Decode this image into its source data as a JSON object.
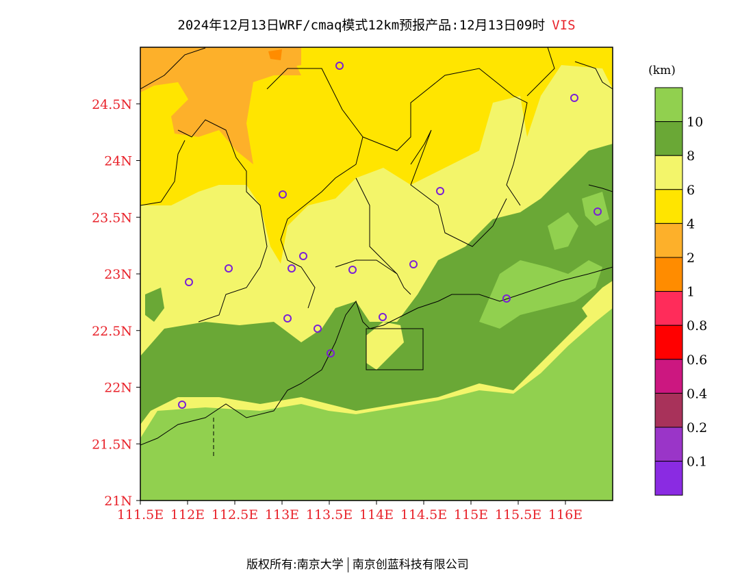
{
  "title": {
    "main": "2024年12月13日WRF/cmaq模式12km预报产品:12月13日09时",
    "variable": "VIS"
  },
  "map": {
    "lat_labels": [
      "21N",
      "21.5N",
      "22N",
      "22.5N",
      "23N",
      "23.5N",
      "24N",
      "24.5N"
    ],
    "lon_labels": [
      "111.5E",
      "112E",
      "112.5E",
      "113E",
      "113.5E",
      "114E",
      "114.5E",
      "115E",
      "115.5E",
      "116E"
    ],
    "extent": {
      "lon_min": 111.5,
      "lon_max": 116.5,
      "lat_min": 21.0,
      "lat_max": 25.0
    },
    "label_color": "#e8222a",
    "stations_count_note": null
  },
  "legend": {
    "unit": "(km)",
    "levels": [
      {
        "label": "10",
        "color": "#91d04f"
      },
      {
        "label": "8",
        "color": "#6aa836"
      },
      {
        "label": "6",
        "color": "#f3f56a"
      },
      {
        "label": "4",
        "color": "#ffe500"
      },
      {
        "label": "2",
        "color": "#fdb02a"
      },
      {
        "label": "1",
        "color": "#ff8c00"
      },
      {
        "label": "0.8",
        "color": "#ff2c5a"
      },
      {
        "label": "0.6",
        "color": "#ff0000"
      },
      {
        "label": "0.4",
        "color": "#cc1780"
      },
      {
        "label": "0.2",
        "color": "#a8325a"
      },
      {
        "label": "0.1",
        "color": "#9a35c8"
      },
      {
        "label": "",
        "color": "#8a2be2"
      }
    ]
  },
  "footer": {
    "left": "版权所有:南京大学",
    "right": "南京创蓝科技有限公司"
  }
}
